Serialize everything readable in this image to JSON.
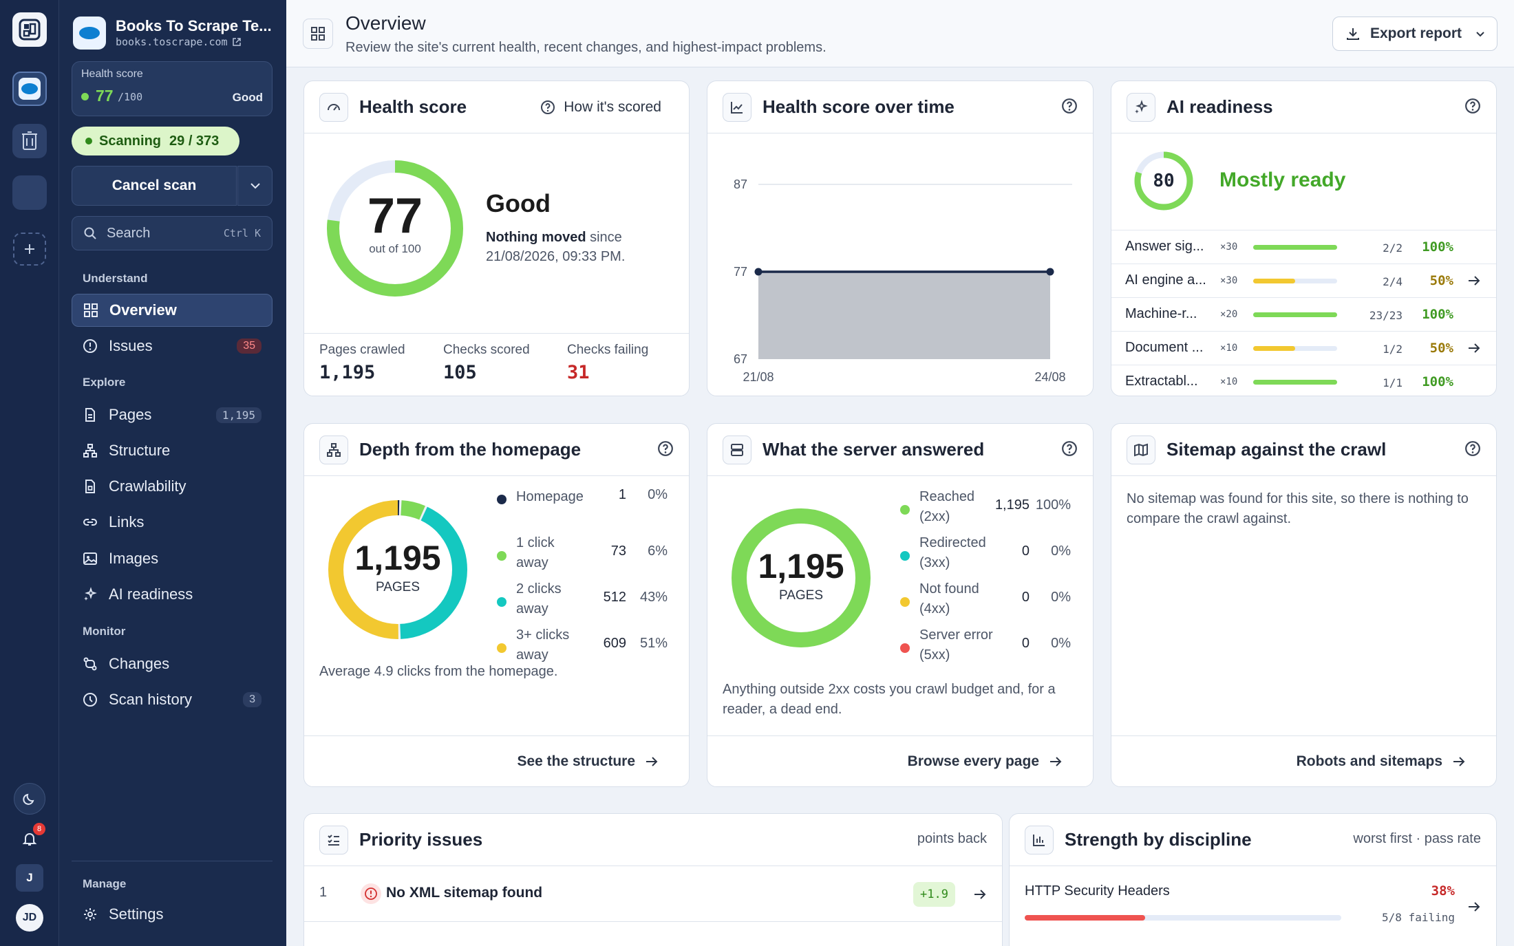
{
  "sidebar": {
    "site_name": "Books To Scrape Te...",
    "site_url": "books.toscrape.com",
    "health": {
      "label": "Health score",
      "value": "77",
      "max": "/100",
      "status": "Good"
    },
    "scan": {
      "label": "Scanning",
      "progress": "29 / 373"
    },
    "cancel_label": "Cancel scan",
    "search": {
      "label": "Search",
      "shortcut": "Ctrl K"
    },
    "sections": {
      "understand": "Understand",
      "explore": "Explore",
      "monitor": "Monitor",
      "manage": "Manage"
    },
    "items": {
      "overview": "Overview",
      "issues": {
        "label": "Issues",
        "count": "35"
      },
      "pages": {
        "label": "Pages",
        "count": "1,195"
      },
      "structure": "Structure",
      "crawlability": "Crawlability",
      "links": "Links",
      "images": "Images",
      "ai_readiness": "AI readiness",
      "changes": "Changes",
      "scan_history": {
        "label": "Scan history",
        "count": "3"
      },
      "settings": "Settings"
    }
  },
  "rail": {
    "notifications": "8",
    "workspace": "J",
    "user": "JD"
  },
  "header": {
    "title": "Overview",
    "subtitle": "Review the site's current health, recent changes, and highest-impact problems.",
    "export_label": "Export report"
  },
  "health_card": {
    "title": "Health score",
    "help_label": "How it's scored",
    "score": "77",
    "score_fraction": 0.77,
    "out_of": "out of 100",
    "status": "Good",
    "moved_bold": "Nothing moved",
    "moved_rest": " since",
    "moved_date": "21/08/2026, 09:33 PM.",
    "stats": [
      {
        "label": "Pages crawled",
        "value": "1,195"
      },
      {
        "label": "Checks scored",
        "value": "105"
      },
      {
        "label": "Checks failing",
        "value": "31"
      }
    ]
  },
  "chart_data": {
    "type": "area",
    "title": "Health score over time",
    "x": [
      "21/08",
      "24/08"
    ],
    "series": [
      {
        "values": [
          77,
          77
        ]
      }
    ],
    "yticks": [
      "87",
      "77",
      "67"
    ],
    "ylim": [
      67,
      87
    ],
    "grid": true
  },
  "ai_card": {
    "title": "AI readiness",
    "score": "80",
    "score_fraction": 0.8,
    "status": "Mostly ready",
    "rows": [
      {
        "name": "Answer sig...",
        "weight": "×30",
        "ratio": "2/2",
        "pct": "100%",
        "fill": 1.0
      },
      {
        "name": "AI engine a...",
        "weight": "×30",
        "ratio": "2/4",
        "pct": "50%",
        "fill": 0.5
      },
      {
        "name": "Machine-r...",
        "weight": "×20",
        "ratio": "23/23",
        "pct": "100%",
        "fill": 1.0
      },
      {
        "name": "Document ...",
        "weight": "×10",
        "ratio": "1/2",
        "pct": "50%",
        "fill": 0.5
      },
      {
        "name": "Extractabl...",
        "weight": "×10",
        "ratio": "1/1",
        "pct": "100%",
        "fill": 1.0
      }
    ]
  },
  "depth_card": {
    "title": "Depth from the homepage",
    "total": "1,195",
    "unit": "PAGES",
    "legend": [
      {
        "label1": "Homepage",
        "label2": "",
        "count": "1",
        "pct": "0%",
        "color": "#1b2a4a"
      },
      {
        "label1": "1 click",
        "label2": "away",
        "count": "73",
        "pct": "6%",
        "color": "#7ed957"
      },
      {
        "label1": "2 clicks",
        "label2": "away",
        "count": "512",
        "pct": "43%",
        "color": "#14c8c0"
      },
      {
        "label1": "3+ clicks",
        "label2": "away",
        "count": "609",
        "pct": "51%",
        "color": "#f2c830"
      }
    ],
    "average": "Average 4.9 clicks from the homepage.",
    "footer_link": "See the structure"
  },
  "server_card": {
    "title": "What the server answered",
    "total": "1,195",
    "unit": "PAGES",
    "legend": [
      {
        "label1": "Reached",
        "label2": "(2xx)",
        "count": "1,195",
        "pct": "100%",
        "color": "#7ed957"
      },
      {
        "label1": "Redirected",
        "label2": "(3xx)",
        "count": "0",
        "pct": "0%",
        "color": "#14c8c0"
      },
      {
        "label1": "Not found",
        "label2": "(4xx)",
        "count": "0",
        "pct": "0%",
        "color": "#f2c830"
      },
      {
        "label1": "Server error",
        "label2": "(5xx)",
        "count": "0",
        "pct": "0%",
        "color": "#ef5350"
      }
    ],
    "note": "Anything outside 2xx costs you crawl budget and, for a reader, a dead end.",
    "footer_link": "Browse every page"
  },
  "sitemap_card": {
    "title": "Sitemap against the crawl",
    "message": "No sitemap was found for this site, so there is nothing to compare the crawl against.",
    "footer_link": "Robots and sitemaps"
  },
  "priority_card": {
    "title": "Priority issues",
    "meta": "points back",
    "issues": [
      {
        "rank": "1",
        "title": "No XML sitemap found",
        "points": "+1.9"
      }
    ]
  },
  "strength_card": {
    "title": "Strength by discipline",
    "meta": "worst first · pass rate",
    "rows": [
      {
        "name": "HTTP Security Headers",
        "pct": "38%",
        "failing": "5/8 failing",
        "fill": 0.38
      }
    ]
  }
}
